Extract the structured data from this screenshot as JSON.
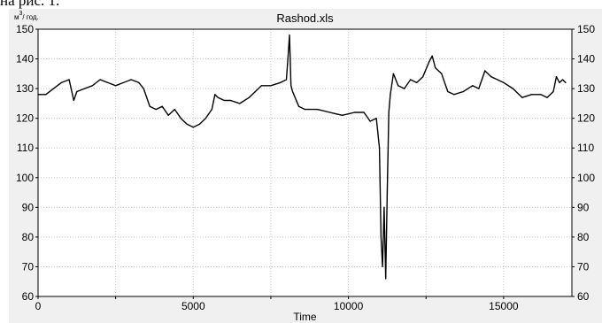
{
  "page_caption": "на рис. 1.",
  "chart_data": {
    "type": "line",
    "title": "Rashod.xls",
    "xlabel": "Time",
    "ylabel_unit": {
      "base": "м",
      "sup": "3",
      "suffix": "/ год."
    },
    "xlim": [
      0,
      17200
    ],
    "ylim": [
      60,
      150
    ],
    "x_ticks": [
      0,
      5000,
      10000,
      15000
    ],
    "y_ticks": [
      60,
      70,
      80,
      90,
      100,
      110,
      120,
      130,
      140,
      150
    ],
    "grid": true,
    "line_color": "#000000",
    "series": [
      {
        "x": [
          0,
          250,
          500,
          750,
          1000,
          1150,
          1250,
          1500,
          1750,
          2000,
          2250,
          2500,
          2750,
          3000,
          3250,
          3400,
          3600,
          3800,
          4000,
          4200,
          4400,
          4600,
          4800,
          5000,
          5200,
          5400,
          5600,
          5700,
          5800,
          6000,
          6200,
          6500,
          6800,
          7000,
          7200,
          7500,
          7800,
          8000,
          8050,
          8100,
          8150,
          8200,
          8400,
          8600,
          9000,
          9400,
          9800,
          10200,
          10500,
          10700,
          10900,
          11000,
          11050,
          11100,
          11150,
          11200,
          11250,
          11300,
          11350,
          11450,
          11600,
          11800,
          12000,
          12200,
          12400,
          12600,
          12700,
          12800,
          13000,
          13200,
          13400,
          13700,
          14000,
          14200,
          14400,
          14600,
          14800,
          15000,
          15300,
          15600,
          15900,
          16200,
          16400,
          16600,
          16700,
          16800,
          16900,
          17000
        ],
        "values": [
          128,
          128,
          130,
          132,
          133,
          126,
          129,
          130,
          131,
          133,
          132,
          131,
          132,
          133,
          132,
          130,
          124,
          123,
          124,
          121,
          123,
          120,
          118,
          117,
          118,
          120,
          123,
          128,
          127,
          126,
          126,
          125,
          127,
          129,
          131,
          131,
          132,
          133,
          140,
          148,
          131,
          129,
          124,
          123,
          123,
          122,
          121,
          122,
          122,
          119,
          120,
          110,
          80,
          70,
          90,
          66,
          95,
          122,
          128,
          135,
          131,
          130,
          133,
          132,
          134,
          139,
          141,
          137,
          135,
          129,
          128,
          129,
          131,
          130,
          136,
          134,
          133,
          132,
          130,
          127,
          128,
          128,
          127,
          129,
          134,
          132,
          133,
          132
        ]
      }
    ]
  }
}
